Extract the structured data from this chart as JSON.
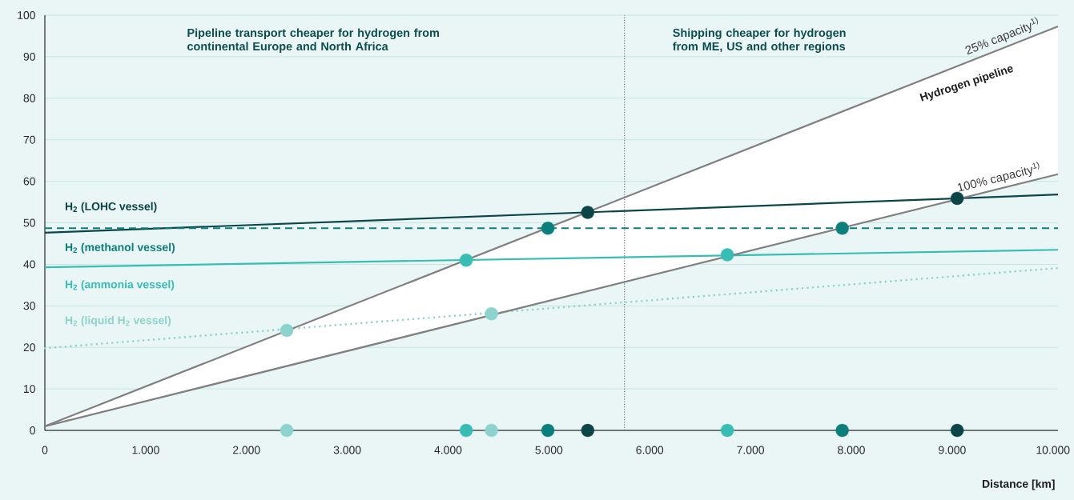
{
  "chart_data": {
    "type": "line",
    "xlabel": "Distance [km]",
    "xlim": [
      0,
      10050
    ],
    "ylim": [
      0,
      100
    ],
    "xticks": [
      0,
      {
        "value": 1000,
        "label": "1.000"
      },
      {
        "value": 2000,
        "label": "2.000"
      },
      {
        "value": 3000,
        "label": "3.000"
      },
      {
        "value": 4000,
        "label": "4.000"
      },
      {
        "value": 5000,
        "label": "5.000"
      },
      {
        "value": 6000,
        "label": "6.000"
      },
      {
        "value": 7000,
        "label": "7.000"
      },
      {
        "value": 8000,
        "label": "8.000"
      },
      {
        "value": 9000,
        "label": "9.000"
      },
      {
        "value": 10000,
        "label": "10.000"
      }
    ],
    "yticks": [
      0,
      10,
      20,
      30,
      40,
      50,
      60,
      70,
      80,
      90,
      100
    ],
    "grid": "y",
    "annotations": [
      "Pipeline transport cheaper for hydrogen from continental Europe and North Africa",
      "Shipping cheaper for hydrogen from ME, US and other regions",
      "Hydrogen pipeline"
    ],
    "ref_lines": [
      {
        "axis": "x",
        "value": 5750,
        "color": "#555555",
        "line_style": "dotted"
      }
    ],
    "series": [
      {
        "name": "H$_{2}$ (LOHC vessel)",
        "color": "#0b4548",
        "line_style": "solid",
        "x": [
          0,
          10050
        ],
        "values": [
          47.6,
          56.8
        ]
      },
      {
        "name": "H$_{2}$ (methanol vessel)",
        "color": "#0a7f7c",
        "line_style": "dashed",
        "x": [
          0,
          10050
        ],
        "values": [
          48.7,
          48.7
        ]
      },
      {
        "name": "H$_{2}$ (ammonia vessel)",
        "color": "#38bdb4",
        "line_style": "solid",
        "x": [
          0,
          10050
        ],
        "values": [
          39.3,
          43.5
        ]
      },
      {
        "name": "H$_{2}$ (liquid H$_{2}$ vessel)",
        "color": "#8dd3cd",
        "line_style": "dotted",
        "x": [
          0,
          10050
        ],
        "values": [
          19.8,
          39.1
        ]
      },
      {
        "name": "25% capacity$^{1)}$",
        "color": "#808080",
        "line_style": "solid",
        "x": [
          0,
          10050
        ],
        "values": [
          1,
          97.3
        ],
        "lower": [
          1,
          61.7
        ],
        "upper": [
          1,
          97.3
        ]
      },
      {
        "name": "100% capacity$^{1)}$",
        "color": "#808080",
        "line_style": "solid",
        "x": [
          0,
          10050
        ],
        "values": [
          1,
          61.7
        ]
      },
      {
        "type": "scatter",
        "x": [
          2400,
          4430,
          4180,
          6770,
          4990,
          7910,
          5385,
          9050
        ],
        "values": [
          24.1,
          28.1,
          41,
          42.3,
          48.7,
          48.7,
          52.5,
          55.9
        ],
        "colors": [
          "#8dd3cd",
          "#8dd3cd",
          "#38bdb4",
          "#38bdb4",
          "#0a7f7c",
          "#0a7f7c",
          "#0b4548",
          "#0b4548"
        ]
      },
      {
        "type": "scatter",
        "x": [
          2400,
          4430,
          4180,
          6770,
          4990,
          7910,
          5385,
          9050
        ],
        "values": [
          0,
          0,
          0,
          0,
          0,
          0,
          0,
          0
        ],
        "colors": [
          "#8dd3cd",
          "#8dd3cd",
          "#38bdb4",
          "#38bdb4",
          "#0a7f7c",
          "#0a7f7c",
          "#0b4548",
          "#0b4548"
        ]
      }
    ]
  }
}
